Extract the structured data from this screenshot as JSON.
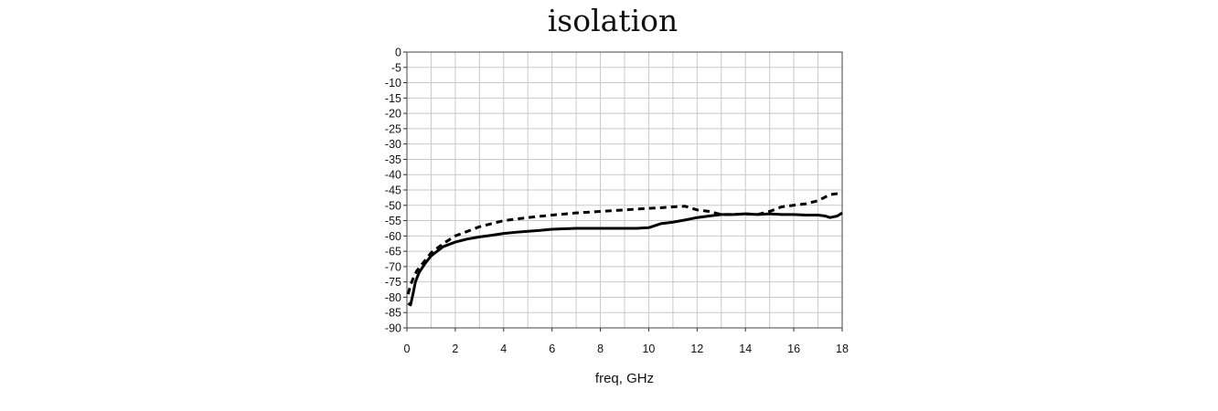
{
  "chart_data": {
    "type": "line",
    "title": "isolation",
    "xlabel": "freq, GHz",
    "ylabel": "",
    "xlim": [
      0,
      18
    ],
    "ylim": [
      -90,
      0
    ],
    "xticks": [
      0,
      2,
      4,
      6,
      8,
      10,
      12,
      14,
      16,
      18
    ],
    "yticks": [
      0,
      -5,
      -10,
      -15,
      -20,
      -25,
      -30,
      -35,
      -40,
      -45,
      -50,
      -55,
      -60,
      -65,
      -70,
      -75,
      -80,
      -85,
      -90
    ],
    "grid": true,
    "legend": false,
    "series": [
      {
        "style": "solid",
        "color": "#000000",
        "x": [
          0.05,
          0.15,
          0.25,
          0.35,
          0.5,
          0.75,
          1.0,
          1.25,
          1.5,
          2.0,
          2.5,
          3.0,
          3.5,
          4.0,
          4.5,
          5.0,
          5.5,
          6.0,
          7.0,
          8.0,
          9.0,
          9.5,
          10.0,
          10.5,
          11.0,
          11.5,
          12.0,
          12.5,
          13.0,
          13.5,
          14.0,
          14.5,
          15.0,
          15.5,
          16.0,
          16.5,
          17.0,
          17.3,
          17.5,
          17.8,
          18.0
        ],
        "y": [
          -82,
          -82.5,
          -79,
          -75,
          -72,
          -69,
          -66.5,
          -65,
          -63.5,
          -62,
          -61,
          -60.3,
          -59.8,
          -59.2,
          -58.8,
          -58.5,
          -58.2,
          -57.8,
          -57.5,
          -57.5,
          -57.5,
          -57.5,
          -57.3,
          -56,
          -55.5,
          -54.8,
          -54,
          -53.5,
          -53,
          -53,
          -52.8,
          -53,
          -52.8,
          -53,
          -53,
          -53.2,
          -53.2,
          -53.5,
          -54,
          -53.5,
          -52.5
        ]
      },
      {
        "style": "dashed",
        "color": "#000000",
        "x": [
          0.05,
          0.15,
          0.25,
          0.4,
          0.6,
          0.8,
          1.0,
          1.5,
          2.0,
          2.5,
          3.0,
          3.5,
          4.0,
          5.0,
          6.0,
          7.0,
          8.0,
          9.0,
          10.0,
          10.5,
          11.0,
          11.5,
          12.0,
          12.5,
          13.0,
          13.5,
          14.0,
          14.5,
          15.0,
          15.5,
          16.0,
          16.5,
          17.0,
          17.5,
          18.0
        ],
        "y": [
          -79,
          -76,
          -74,
          -71.5,
          -69.5,
          -67.5,
          -65.5,
          -62.5,
          -60,
          -58.5,
          -57,
          -56,
          -55,
          -54,
          -53.2,
          -52.5,
          -52,
          -51.5,
          -51,
          -50.8,
          -50.5,
          -50.3,
          -51.5,
          -52,
          -53,
          -53,
          -52.8,
          -53,
          -52,
          -50.5,
          -50,
          -49.5,
          -48.5,
          -46.5,
          -46
        ]
      }
    ]
  }
}
